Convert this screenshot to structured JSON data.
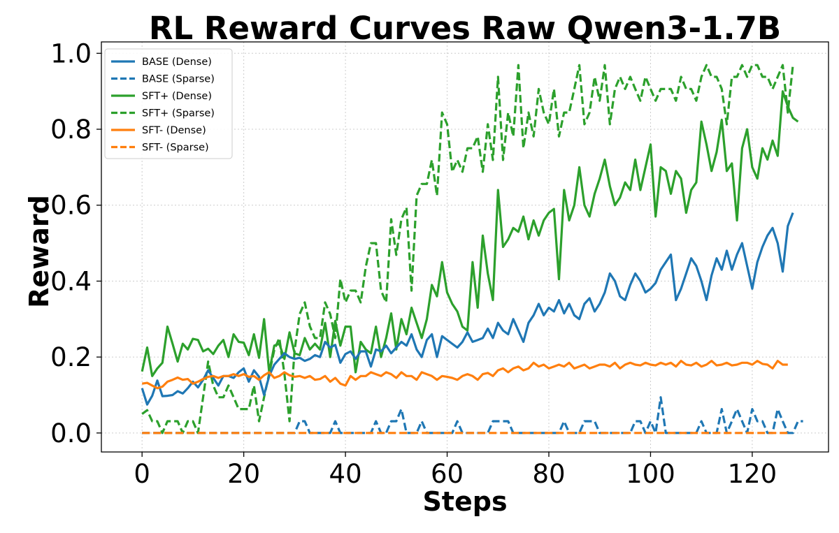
{
  "chart_data": {
    "type": "line",
    "title": "RL Reward Curves Raw Qwen3-1.7B",
    "xlabel": "Steps",
    "ylabel": "Reward",
    "xlim": [
      -8,
      135
    ],
    "ylim": [
      -0.05,
      1.03
    ],
    "x_ticks": [
      "0",
      "20",
      "40",
      "60",
      "80",
      "100",
      "120"
    ],
    "y_ticks": [
      "0.0",
      "0.2",
      "0.4",
      "0.6",
      "0.8",
      "1.0"
    ],
    "grid": true,
    "legend_position": "top-left",
    "colors": {
      "BASE": "#1f77b4",
      "SFT+": "#2ca02c",
      "SFT-": "#ff7f0e"
    },
    "series": [
      {
        "name": "BASE (Dense)",
        "color": "#1f77b4",
        "style": "solid",
        "x_start": 0,
        "y": [
          0.118,
          0.075,
          0.098,
          0.138,
          0.097,
          0.098,
          0.1,
          0.112,
          0.1,
          0.118,
          0.135,
          0.12,
          0.146,
          0.165,
          0.135,
          0.12,
          0.15,
          0.15,
          0.145,
          0.16,
          0.17,
          0.135,
          0.165,
          0.148,
          0.1,
          0.15,
          0.18,
          0.195,
          0.21,
          0.2,
          0.195,
          0.198,
          0.19,
          0.195,
          0.205,
          0.2,
          0.24,
          0.225,
          0.232,
          0.185,
          0.208,
          0.215,
          0.195,
          0.215,
          0.215,
          0.175,
          0.22,
          0.215,
          0.23,
          0.21,
          0.225,
          0.24,
          0.23,
          0.26,
          0.22,
          0.2,
          0.245,
          0.26,
          0.2,
          0.255,
          0.245,
          0.235,
          0.225,
          0.24,
          0.265,
          0.24,
          0.245,
          0.25,
          0.275,
          0.25,
          0.29,
          0.27,
          0.26,
          0.3,
          0.27,
          0.24,
          0.29,
          0.31,
          0.34,
          0.31,
          0.33,
          0.32,
          0.35,
          0.315,
          0.34,
          0.31,
          0.3,
          0.34,
          0.355,
          0.32,
          0.34,
          0.37,
          0.42,
          0.4,
          0.36,
          0.35,
          0.39,
          0.42,
          0.4,
          0.37,
          0.38,
          0.395,
          0.43,
          0.45,
          0.47,
          0.35,
          0.38,
          0.42,
          0.46,
          0.44,
          0.4,
          0.35,
          0.415,
          0.46,
          0.43,
          0.48,
          0.43,
          0.47,
          0.5,
          0.44,
          0.38,
          0.45,
          0.49,
          0.52,
          0.54,
          0.5,
          0.425,
          0.545,
          0.58
        ],
        "y_override": {
          "5": 0.098,
          "6": 0.1,
          "7": 0.11,
          "8": 0.104,
          "9": 0.118,
          "10": 0.135,
          "11": 0.12,
          "12": 0.14,
          "13": 0.165,
          "14": 0.145,
          "15": 0.125,
          "16": 0.15
        }
      },
      {
        "name": "BASE (Sparse)",
        "color": "#1f77b4",
        "style": "dashed",
        "x_start": 0,
        "y": [
          0,
          0,
          0,
          0,
          0,
          0,
          0,
          0,
          0,
          0,
          0,
          0,
          0,
          0,
          0,
          0,
          0,
          0,
          0,
          0,
          0,
          0,
          0,
          0,
          0,
          0,
          0,
          0,
          0,
          0,
          0,
          0.031,
          0.031,
          0,
          0,
          0,
          0,
          0,
          0.031,
          0,
          0,
          0,
          0,
          0,
          0,
          0,
          0.031,
          0,
          0,
          0.031,
          0.031,
          0.063,
          0,
          0,
          0,
          0.031,
          0,
          0,
          0,
          0,
          0,
          0,
          0.031,
          0,
          0,
          0,
          0,
          0,
          0,
          0.031,
          0.031,
          0.031,
          0.031,
          0,
          0,
          0,
          0,
          0,
          0,
          0,
          0,
          0,
          0,
          0.031,
          0,
          0,
          0,
          0.031,
          0.031,
          0.031,
          0,
          0,
          0,
          0,
          0,
          0,
          0,
          0.031,
          0.031,
          0,
          0.031,
          0,
          0.094,
          0,
          0,
          0,
          0,
          0,
          0,
          0,
          0.031,
          0,
          0,
          0,
          0.063,
          0,
          0.031,
          0.063,
          0.031,
          0,
          0.063,
          0.031,
          0.031,
          0,
          0,
          0.063,
          0.031,
          0,
          0,
          0.031,
          0.031
        ]
      },
      {
        "name": "SFT+ (Dense)",
        "color": "#2ca02c",
        "style": "solid",
        "x_start": 0,
        "y": [
          0.162,
          0.225,
          0.15,
          0.17,
          0.185,
          0.28,
          0.235,
          0.188,
          0.235,
          0.22,
          0.248,
          0.245,
          0.215,
          0.222,
          0.208,
          0.23,
          0.245,
          0.2,
          0.26,
          0.24,
          0.238,
          0.205,
          0.26,
          0.198,
          0.3,
          0.16,
          0.23,
          0.235,
          0.195,
          0.265,
          0.21,
          0.205,
          0.25,
          0.22,
          0.235,
          0.22,
          0.29,
          0.2,
          0.295,
          0.23,
          0.28,
          0.28,
          0.16,
          0.24,
          0.22,
          0.21,
          0.28,
          0.2,
          0.25,
          0.315,
          0.22,
          0.3,
          0.26,
          0.33,
          0.29,
          0.25,
          0.3,
          0.39,
          0.36,
          0.45,
          0.37,
          0.34,
          0.32,
          0.28,
          0.27,
          0.45,
          0.33,
          0.52,
          0.42,
          0.35,
          0.64,
          0.49,
          0.51,
          0.54,
          0.53,
          0.57,
          0.51,
          0.56,
          0.52,
          0.56,
          0.58,
          0.59,
          0.405,
          0.64,
          0.56,
          0.6,
          0.7,
          0.6,
          0.57,
          0.63,
          0.67,
          0.72,
          0.65,
          0.6,
          0.62,
          0.66,
          0.64,
          0.72,
          0.64,
          0.7,
          0.76,
          0.57,
          0.7,
          0.69,
          0.63,
          0.69,
          0.67,
          0.58,
          0.64,
          0.66,
          0.82,
          0.76,
          0.69,
          0.74,
          0.825,
          0.69,
          0.71,
          0.56,
          0.75,
          0.8,
          0.7,
          0.67,
          0.75,
          0.72,
          0.77,
          0.73,
          0.9,
          0.86,
          0.83,
          0.82
        ]
      },
      {
        "name": "SFT+ (Sparse)",
        "color": "#2ca02c",
        "style": "dashed",
        "x_start": 0,
        "y": [
          0.05,
          0.06,
          0.031,
          0.031,
          0.0,
          0.031,
          0.031,
          0.031,
          0.0,
          0.031,
          0.031,
          0.0,
          0.094,
          0.188,
          0.125,
          0.094,
          0.094,
          0.125,
          0.094,
          0.063,
          0.063,
          0.063,
          0.125,
          0.031,
          0.094,
          0.156,
          0.219,
          0.25,
          0.156,
          0.031,
          0.219,
          0.313,
          0.344,
          0.281,
          0.25,
          0.25,
          0.344,
          0.313,
          0.25,
          0.406,
          0.344,
          0.375,
          0.375,
          0.344,
          0.438,
          0.5,
          0.5,
          0.375,
          0.344,
          0.563,
          0.469,
          0.563,
          0.594,
          0.375,
          0.625,
          0.656,
          0.656,
          0.719,
          0.625,
          0.844,
          0.813,
          0.688,
          0.719,
          0.688,
          0.75,
          0.75,
          0.781,
          0.688,
          0.813,
          0.719,
          0.938,
          0.719,
          0.844,
          0.781,
          0.969,
          0.75,
          0.844,
          0.781,
          0.906,
          0.844,
          0.813,
          0.906,
          0.781,
          0.844,
          0.844,
          0.906,
          0.969,
          0.813,
          0.844,
          0.938,
          0.875,
          0.969,
          0.813,
          0.906,
          0.938,
          0.906,
          0.938,
          0.906,
          0.875,
          0.938,
          0.906,
          0.875,
          0.906,
          0.906,
          0.906,
          0.875,
          0.938,
          0.906,
          0.906,
          0.875,
          0.938,
          0.969,
          0.938,
          0.938,
          0.906,
          0.813,
          0.938,
          0.938,
          0.969,
          0.938,
          0.969,
          0.969,
          0.938,
          0.938,
          0.906,
          0.938,
          0.969,
          0.844,
          0.969
        ]
      },
      {
        "name": "SFT- (Dense)",
        "color": "#ff7f0e",
        "style": "solid",
        "x_start": 0,
        "y": [
          0.13,
          0.132,
          0.125,
          0.118,
          0.122,
          0.135,
          0.14,
          0.146,
          0.14,
          0.142,
          0.13,
          0.135,
          0.142,
          0.148,
          0.15,
          0.145,
          0.15,
          0.15,
          0.155,
          0.15,
          0.155,
          0.148,
          0.15,
          0.14,
          0.152,
          0.16,
          0.145,
          0.15,
          0.16,
          0.152,
          0.148,
          0.15,
          0.145,
          0.15,
          0.14,
          0.142,
          0.15,
          0.135,
          0.145,
          0.13,
          0.125,
          0.15,
          0.14,
          0.15,
          0.15,
          0.16,
          0.155,
          0.15,
          0.16,
          0.155,
          0.145,
          0.16,
          0.15,
          0.15,
          0.14,
          0.16,
          0.155,
          0.15,
          0.14,
          0.15,
          0.148,
          0.145,
          0.14,
          0.15,
          0.155,
          0.15,
          0.14,
          0.155,
          0.158,
          0.15,
          0.165,
          0.17,
          0.16,
          0.17,
          0.175,
          0.165,
          0.17,
          0.185,
          0.175,
          0.18,
          0.17,
          0.175,
          0.18,
          0.175,
          0.185,
          0.17,
          0.175,
          0.18,
          0.17,
          0.175,
          0.18,
          0.18,
          0.175,
          0.185,
          0.17,
          0.18,
          0.185,
          0.18,
          0.178,
          0.185,
          0.18,
          0.178,
          0.185,
          0.18,
          0.185,
          0.175,
          0.19,
          0.18,
          0.178,
          0.185,
          0.175,
          0.18,
          0.19,
          0.178,
          0.18,
          0.185,
          0.178,
          0.18,
          0.185,
          0.185,
          0.18,
          0.19,
          0.182,
          0.18,
          0.17,
          0.19,
          0.18,
          0.18
        ],
        "y_fix": true
      },
      {
        "name": "SFT- (Sparse)",
        "color": "#ff7f0e",
        "style": "dashed",
        "x_start": 0,
        "y_constant": 0.0,
        "length": 128
      }
    ]
  }
}
